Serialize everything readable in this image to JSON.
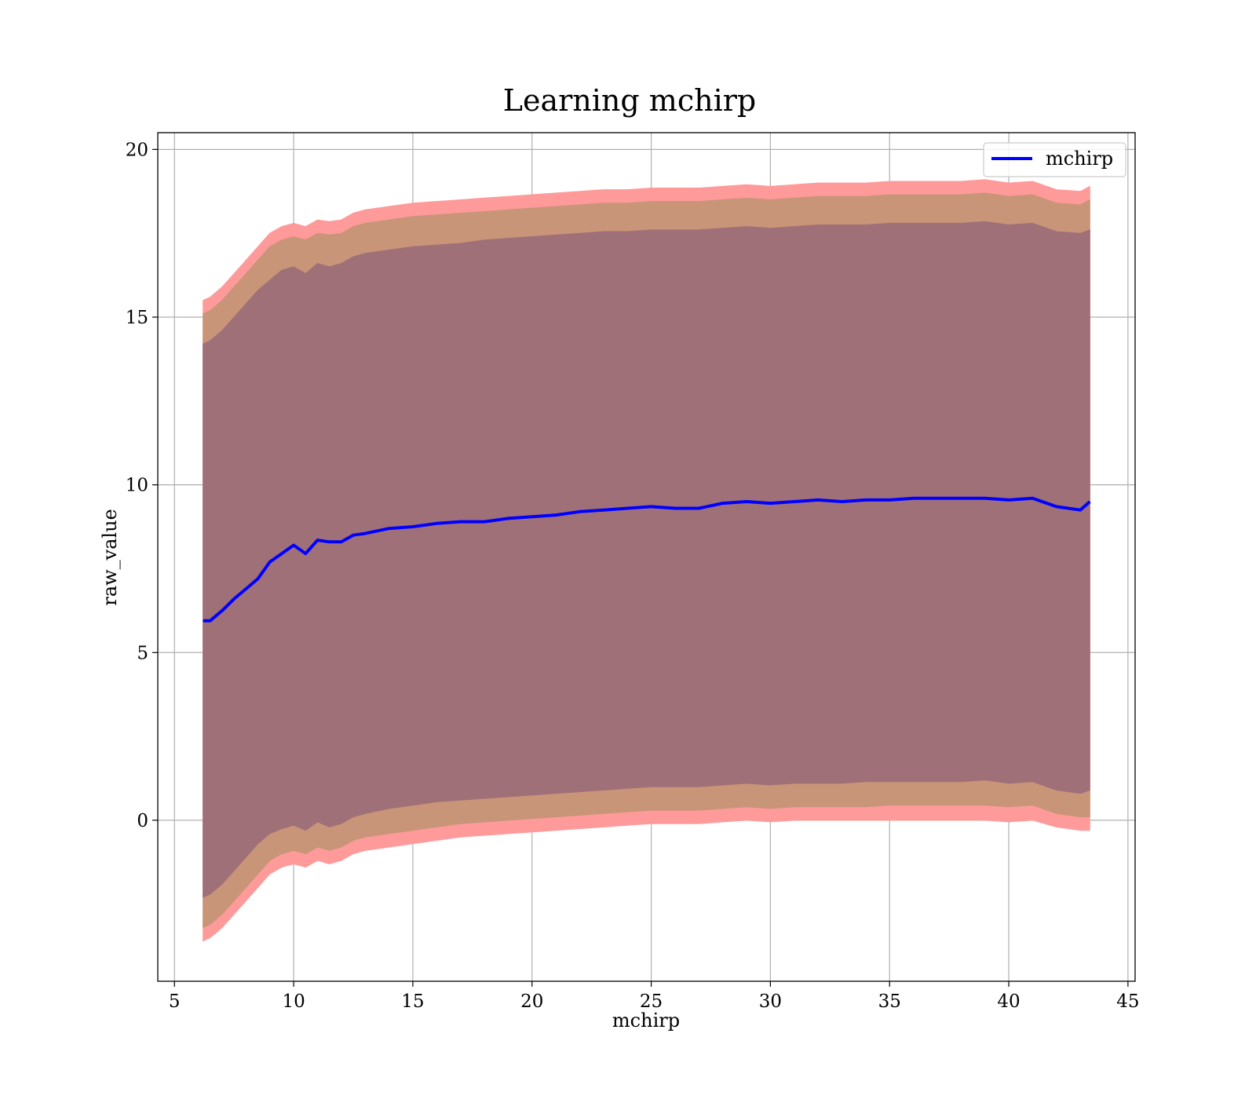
{
  "chart_data": {
    "type": "line",
    "title": "Learning mchirp",
    "xlabel": "mchirp",
    "ylabel": "raw_value",
    "xlim": [
      4.3,
      45.3
    ],
    "ylim": [
      -4.8,
      20.5
    ],
    "x_ticks": [
      5,
      10,
      15,
      20,
      25,
      30,
      35,
      40,
      45
    ],
    "y_ticks": [
      0,
      5,
      10,
      15,
      20
    ],
    "grid": true,
    "legend": {
      "position": "top-right",
      "entries": [
        "mchirp"
      ]
    },
    "colors": {
      "line": "#0000ff",
      "band_outer": "#ff9a9a",
      "band_middle": "#c99578",
      "band_inner": "#a07078"
    },
    "series": [
      {
        "name": "mchirp",
        "x": [
          6.2,
          6.5,
          7.0,
          7.5,
          8.0,
          8.5,
          9.0,
          9.5,
          10.0,
          10.5,
          11.0,
          11.5,
          12.0,
          12.5,
          13.0,
          14.0,
          15.0,
          16.0,
          17.0,
          18.0,
          19.0,
          20.0,
          21.0,
          22.0,
          23.0,
          24.0,
          25.0,
          26.0,
          27.0,
          28.0,
          29.0,
          30.0,
          31.0,
          32.0,
          33.0,
          34.0,
          35.0,
          36.0,
          37.0,
          38.0,
          39.0,
          40.0,
          41.0,
          42.0,
          43.0,
          43.4
        ],
        "y": [
          5.95,
          5.95,
          6.25,
          6.6,
          6.9,
          7.2,
          7.7,
          7.95,
          8.2,
          7.95,
          8.35,
          8.3,
          8.3,
          8.5,
          8.55,
          8.7,
          8.75,
          8.85,
          8.9,
          8.9,
          9.0,
          9.05,
          9.1,
          9.2,
          9.25,
          9.3,
          9.35,
          9.3,
          9.3,
          9.45,
          9.5,
          9.45,
          9.5,
          9.55,
          9.5,
          9.55,
          9.55,
          9.6,
          9.6,
          9.6,
          9.6,
          9.55,
          9.6,
          9.35,
          9.25,
          9.5
        ]
      }
    ],
    "bands": [
      {
        "lower": [
          -3.6,
          -3.5,
          -3.2,
          -2.8,
          -2.4,
          -2.0,
          -1.6,
          -1.4,
          -1.3,
          -1.4,
          -1.2,
          -1.3,
          -1.2,
          -1.0,
          -0.9,
          -0.8,
          -0.7,
          -0.6,
          -0.5,
          -0.45,
          -0.4,
          -0.35,
          -0.3,
          -0.25,
          -0.2,
          -0.15,
          -0.1,
          -0.1,
          -0.1,
          -0.05,
          0.0,
          -0.05,
          0.0,
          0.0,
          0.0,
          0.0,
          0.0,
          0.0,
          0.0,
          0.0,
          0.0,
          -0.05,
          0.0,
          -0.2,
          -0.3,
          -0.3
        ],
        "upper": [
          15.5,
          15.6,
          15.9,
          16.3,
          16.7,
          17.1,
          17.5,
          17.7,
          17.8,
          17.7,
          17.9,
          17.85,
          17.9,
          18.1,
          18.2,
          18.3,
          18.4,
          18.45,
          18.5,
          18.55,
          18.6,
          18.65,
          18.7,
          18.75,
          18.8,
          18.8,
          18.85,
          18.85,
          18.85,
          18.9,
          18.95,
          18.9,
          18.95,
          19.0,
          19.0,
          19.0,
          19.05,
          19.05,
          19.05,
          19.05,
          19.1,
          19.0,
          19.05,
          18.8,
          18.75,
          18.9
        ]
      },
      {
        "lower": [
          -3.2,
          -3.1,
          -2.8,
          -2.4,
          -2.0,
          -1.6,
          -1.2,
          -1.0,
          -0.9,
          -1.0,
          -0.8,
          -0.9,
          -0.8,
          -0.6,
          -0.5,
          -0.4,
          -0.3,
          -0.2,
          -0.1,
          -0.05,
          0.0,
          0.05,
          0.1,
          0.15,
          0.2,
          0.25,
          0.3,
          0.3,
          0.3,
          0.35,
          0.4,
          0.35,
          0.4,
          0.4,
          0.4,
          0.4,
          0.45,
          0.45,
          0.45,
          0.45,
          0.45,
          0.4,
          0.45,
          0.2,
          0.1,
          0.1
        ],
        "upper": [
          15.1,
          15.2,
          15.5,
          15.9,
          16.3,
          16.7,
          17.1,
          17.3,
          17.4,
          17.3,
          17.5,
          17.45,
          17.5,
          17.7,
          17.8,
          17.9,
          18.0,
          18.05,
          18.1,
          18.15,
          18.2,
          18.25,
          18.3,
          18.35,
          18.4,
          18.4,
          18.45,
          18.45,
          18.45,
          18.5,
          18.55,
          18.5,
          18.55,
          18.6,
          18.6,
          18.6,
          18.65,
          18.65,
          18.65,
          18.65,
          18.7,
          18.6,
          18.65,
          18.4,
          18.35,
          18.5
        ]
      },
      {
        "lower": [
          -2.3,
          -2.2,
          -1.9,
          -1.5,
          -1.1,
          -0.7,
          -0.4,
          -0.25,
          -0.15,
          -0.3,
          -0.05,
          -0.2,
          -0.1,
          0.1,
          0.2,
          0.35,
          0.45,
          0.55,
          0.6,
          0.65,
          0.7,
          0.75,
          0.8,
          0.85,
          0.9,
          0.95,
          1.0,
          1.0,
          1.0,
          1.05,
          1.1,
          1.05,
          1.1,
          1.1,
          1.1,
          1.15,
          1.15,
          1.15,
          1.15,
          1.15,
          1.2,
          1.1,
          1.15,
          0.9,
          0.8,
          0.9
        ],
        "upper": [
          14.2,
          14.3,
          14.6,
          15.0,
          15.4,
          15.8,
          16.1,
          16.4,
          16.5,
          16.3,
          16.6,
          16.5,
          16.6,
          16.8,
          16.9,
          17.0,
          17.1,
          17.15,
          17.2,
          17.3,
          17.35,
          17.4,
          17.45,
          17.5,
          17.55,
          17.55,
          17.6,
          17.6,
          17.6,
          17.65,
          17.7,
          17.65,
          17.7,
          17.75,
          17.75,
          17.75,
          17.8,
          17.8,
          17.8,
          17.8,
          17.85,
          17.75,
          17.8,
          17.55,
          17.5,
          17.6
        ]
      }
    ]
  }
}
